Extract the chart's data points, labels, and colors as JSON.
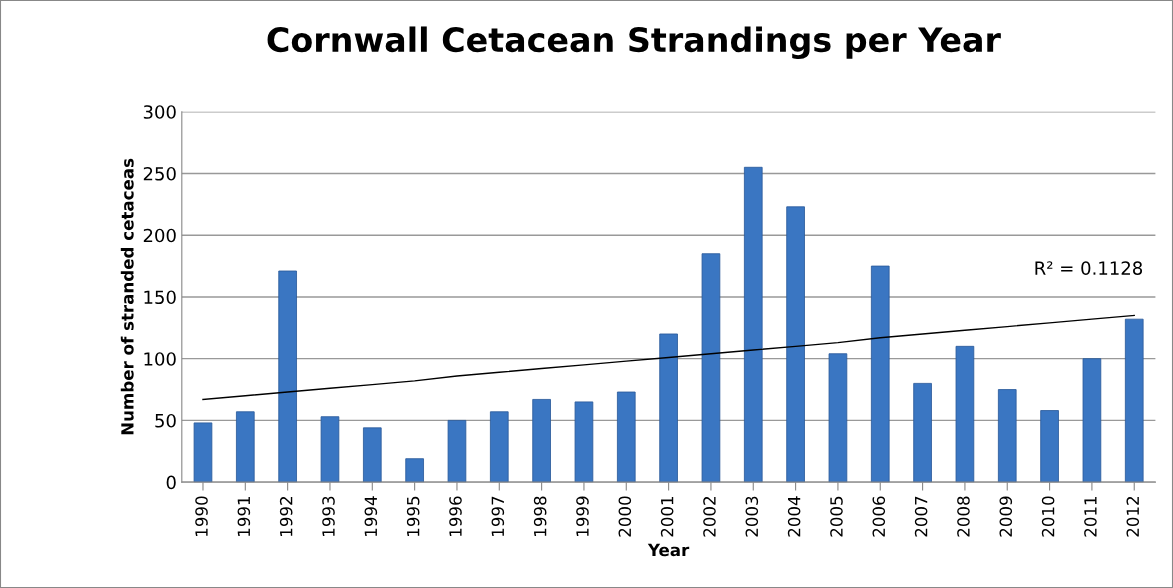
{
  "chart_data": {
    "type": "bar",
    "title": "Cornwall Cetacean Strandings per Year",
    "xlabel": "Year",
    "ylabel": "Number of stranded cetaceas",
    "categories": [
      "1990",
      "1991",
      "1992",
      "1993",
      "1994",
      "1995",
      "1996",
      "1997",
      "1998",
      "1999",
      "2000",
      "2001",
      "2002",
      "2003",
      "2004",
      "2005",
      "2006",
      "2007",
      "2008",
      "2009",
      "2010",
      "2011",
      "2012"
    ],
    "series": [
      {
        "color": "#3a76c2",
        "values": [
          48,
          57,
          171,
          53,
          44,
          19,
          50,
          57,
          67,
          65,
          73,
          120,
          185,
          255,
          223,
          104,
          175,
          80,
          110,
          75,
          58,
          100,
          132
        ]
      },
      {
        "type": "line",
        "color": "#000000",
        "values": [
          67,
          70,
          73,
          76,
          79,
          82,
          86,
          89,
          92,
          95,
          98,
          101,
          104,
          107,
          110,
          113,
          117,
          120,
          123,
          126,
          129,
          132,
          135
        ]
      }
    ],
    "annotations": [
      "R² = 0.1128"
    ],
    "ylim": [
      0,
      300
    ],
    "yticks": [
      0,
      50,
      100,
      150,
      200,
      250,
      300
    ],
    "grid": "y",
    "legend": false
  }
}
